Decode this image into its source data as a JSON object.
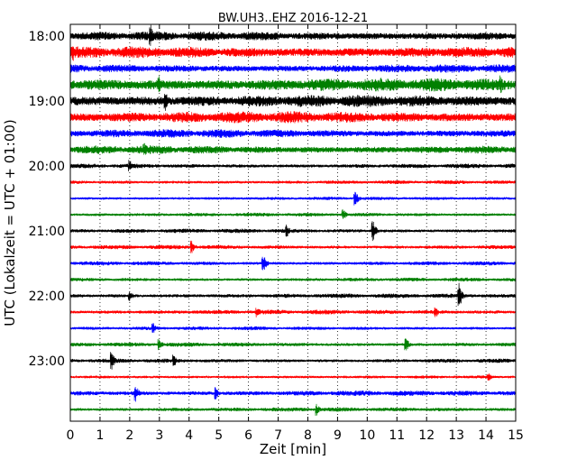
{
  "chart_data": {
    "type": "line",
    "title": "BW.UH3..EHZ 2016-12-21",
    "xlabel": "Zeit  [min]",
    "ylabel": "UTC (Lokalzeit = UTC + 01:00)",
    "x_range": [
      0,
      15
    ],
    "x_ticks": [
      "0",
      "1",
      "2",
      "3",
      "4",
      "5",
      "6",
      "7",
      "8",
      "9",
      "10",
      "11",
      "12",
      "13",
      "14",
      "15"
    ],
    "y_ticks": [
      "18:00",
      "19:00",
      "20:00",
      "21:00",
      "22:00",
      "23:00"
    ],
    "grid": "x-dotted",
    "colors": [
      "#000000",
      "#ff0000",
      "#0000ff",
      "#008000"
    ],
    "series": [
      {
        "time": "18:00",
        "color": "#000000",
        "amplitude": 0.6,
        "spikes": [
          [
            2.7,
            1.6
          ]
        ]
      },
      {
        "time": "18:15",
        "color": "#ff0000",
        "amplitude": 0.75,
        "spikes": [
          [
            0.1,
            1.2
          ]
        ]
      },
      {
        "time": "18:30",
        "color": "#0000ff",
        "amplitude": 0.55,
        "spikes": []
      },
      {
        "time": "18:45",
        "color": "#008000",
        "amplitude": 0.85,
        "spikes": [
          [
            3.0,
            1.3
          ],
          [
            14.5,
            1.2
          ]
        ]
      },
      {
        "time": "19:00",
        "color": "#000000",
        "amplitude": 0.8,
        "spikes": [
          [
            3.2,
            1.3
          ]
        ]
      },
      {
        "time": "19:15",
        "color": "#ff0000",
        "amplitude": 0.75,
        "spikes": []
      },
      {
        "time": "19:30",
        "color": "#0000ff",
        "amplitude": 0.55,
        "spikes": []
      },
      {
        "time": "19:45",
        "color": "#008000",
        "amplitude": 0.55,
        "spikes": [
          [
            2.5,
            0.9
          ]
        ]
      },
      {
        "time": "20:00",
        "color": "#000000",
        "amplitude": 0.3,
        "spikes": [
          [
            2.0,
            0.8
          ]
        ]
      },
      {
        "time": "20:15",
        "color": "#ff0000",
        "amplitude": 0.25,
        "spikes": []
      },
      {
        "time": "20:30",
        "color": "#0000ff",
        "amplitude": 0.22,
        "spikes": [
          [
            9.6,
            1.0
          ]
        ]
      },
      {
        "time": "20:45",
        "color": "#008000",
        "amplitude": 0.25,
        "spikes": [
          [
            9.2,
            0.7
          ]
        ]
      },
      {
        "time": "21:00",
        "color": "#000000",
        "amplitude": 0.28,
        "spikes": [
          [
            10.2,
            1.3
          ],
          [
            7.3,
            0.8
          ]
        ]
      },
      {
        "time": "21:15",
        "color": "#ff0000",
        "amplitude": 0.28,
        "spikes": [
          [
            4.1,
            0.8
          ]
        ]
      },
      {
        "time": "21:30",
        "color": "#0000ff",
        "amplitude": 0.28,
        "spikes": [
          [
            6.5,
            1.2
          ]
        ]
      },
      {
        "time": "21:45",
        "color": "#008000",
        "amplitude": 0.25,
        "spikes": []
      },
      {
        "time": "22:00",
        "color": "#000000",
        "amplitude": 0.3,
        "spikes": [
          [
            13.1,
            1.6
          ],
          [
            2.0,
            0.7
          ]
        ]
      },
      {
        "time": "22:15",
        "color": "#ff0000",
        "amplitude": 0.3,
        "spikes": [
          [
            12.3,
            0.8
          ],
          [
            6.3,
            0.7
          ]
        ]
      },
      {
        "time": "22:30",
        "color": "#0000ff",
        "amplitude": 0.25,
        "spikes": [
          [
            2.8,
            0.7
          ]
        ]
      },
      {
        "time": "22:45",
        "color": "#008000",
        "amplitude": 0.28,
        "spikes": [
          [
            11.3,
            1.0
          ],
          [
            3.0,
            0.7
          ]
        ]
      },
      {
        "time": "23:00",
        "color": "#000000",
        "amplitude": 0.28,
        "spikes": [
          [
            1.4,
            1.1
          ],
          [
            3.5,
            0.8
          ]
        ]
      },
      {
        "time": "23:15",
        "color": "#ff0000",
        "amplitude": 0.2,
        "spikes": [
          [
            14.1,
            0.5
          ]
        ]
      },
      {
        "time": "23:30",
        "color": "#0000ff",
        "amplitude": 0.35,
        "spikes": [
          [
            2.2,
            1.1
          ],
          [
            4.9,
            0.8
          ]
        ]
      },
      {
        "time": "23:45",
        "color": "#008000",
        "amplitude": 0.28,
        "spikes": [
          [
            8.3,
            0.8
          ]
        ]
      }
    ]
  }
}
